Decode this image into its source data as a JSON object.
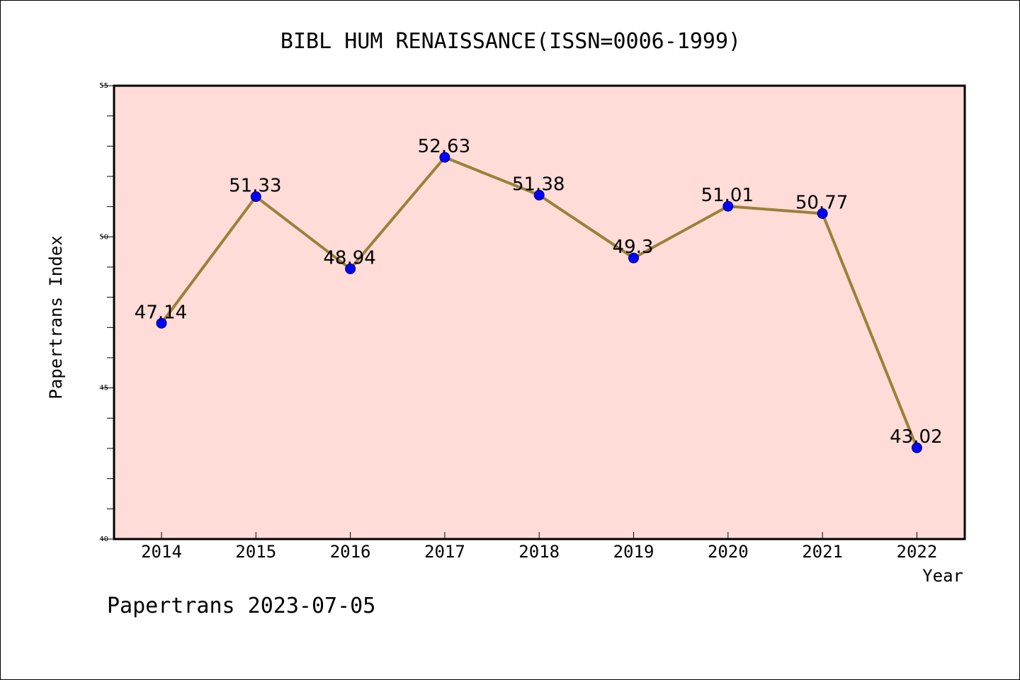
{
  "chart_data": {
    "type": "line",
    "title": "BIBL HUM RENAISSANCE(ISSN=0006-1999)",
    "xlabel": "Year",
    "ylabel": "Papertrans Index",
    "footer": "Papertrans 2023-07-05",
    "categories": [
      "2014",
      "2015",
      "2016",
      "2017",
      "2018",
      "2019",
      "2020",
      "2021",
      "2022"
    ],
    "values": [
      47.14,
      51.33,
      48.94,
      52.63,
      51.38,
      49.3,
      51.01,
      50.77,
      43.02
    ],
    "data_labels": [
      "47.14",
      "51.33",
      "48.94",
      "52.63",
      "51.38",
      "49.3",
      "51.01",
      "50.77",
      "43.02"
    ],
    "ylim": [
      40,
      55
    ],
    "yticks": [
      "40",
      "45",
      "50",
      "55"
    ],
    "grid": false,
    "colors": {
      "plot_background": "#ffdcd8",
      "line": "#9a8139",
      "marker": "#0000ff"
    }
  }
}
